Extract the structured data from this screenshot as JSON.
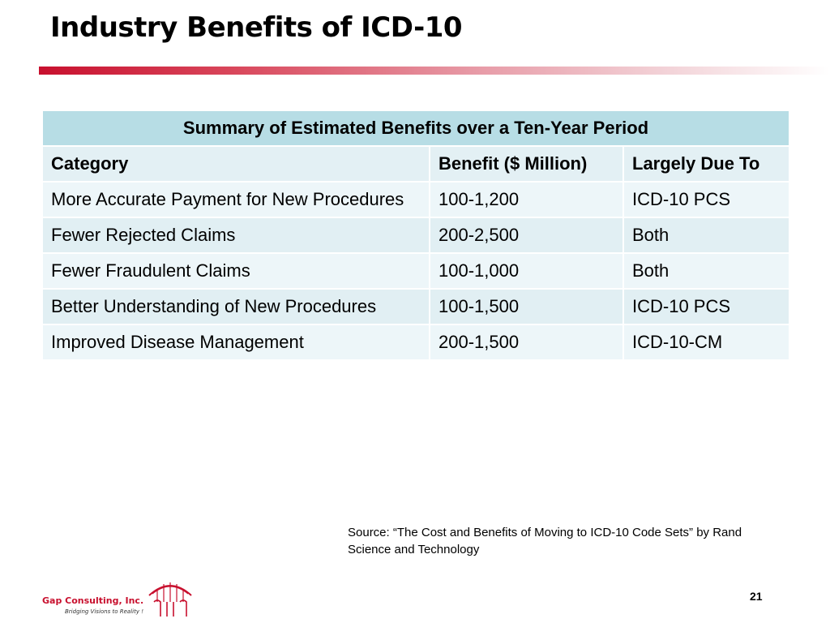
{
  "slide": {
    "title": "Industry Benefits of ICD-10",
    "page_number": "21"
  },
  "table": {
    "caption": "Summary of Estimated Benefits over a Ten-Year Period",
    "headers": [
      "Category",
      "Benefit ($ Million)",
      "Largely Due To"
    ],
    "rows": [
      [
        "More Accurate Payment for New Procedures",
        "100-1,200",
        "ICD-10 PCS"
      ],
      [
        "Fewer Rejected Claims",
        "200-2,500",
        "Both"
      ],
      [
        "Fewer Fraudulent Claims",
        "100-1,000",
        "Both"
      ],
      [
        "Better Understanding of New Procedures",
        "100-1,500",
        "ICD-10 PCS"
      ],
      [
        "Improved Disease Management",
        "200-1,500",
        "ICD-10-CM"
      ]
    ]
  },
  "source": {
    "text": "Source:  “The Cost and Benefits of Moving to ICD-10 Code Sets” by Rand Science and Technology"
  },
  "logo": {
    "name": "Gap Consulting, Inc.",
    "tagline": "Bridging  Visions  to  Reality !",
    "icon": "bridge-arch-icon",
    "brand_color": "#c8102e"
  },
  "colors": {
    "accent": "#c8102e",
    "caption_bg": "#b7dde5",
    "row_bg_light": "#edf6f9",
    "row_bg_dark": "#e1eff3"
  }
}
